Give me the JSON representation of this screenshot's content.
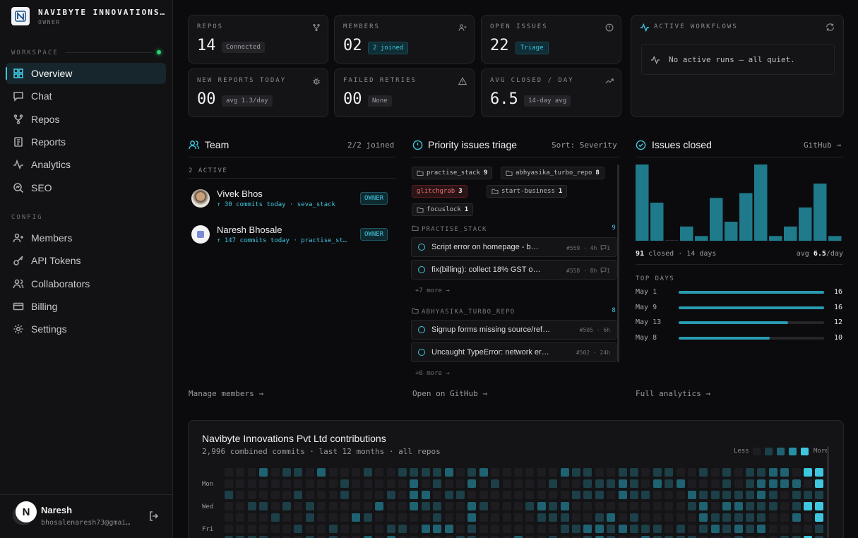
{
  "brand": {
    "name": "NAVIBYTE INNOVATIONS…",
    "role": "OWNER"
  },
  "sidebar": {
    "workspace_label": "WORKSPACE",
    "config_label": "CONFIG",
    "items": [
      {
        "label": "Overview",
        "icon": "grid-icon"
      },
      {
        "label": "Chat",
        "icon": "chat-icon"
      },
      {
        "label": "Repos",
        "icon": "repo-icon"
      },
      {
        "label": "Reports",
        "icon": "report-icon"
      },
      {
        "label": "Analytics",
        "icon": "analytics-icon"
      },
      {
        "label": "SEO",
        "icon": "seo-icon"
      }
    ],
    "config": [
      {
        "label": "Members",
        "icon": "members-icon"
      },
      {
        "label": "API Tokens",
        "icon": "key-icon"
      },
      {
        "label": "Collaborators",
        "icon": "collab-icon"
      },
      {
        "label": "Billing",
        "icon": "billing-icon"
      },
      {
        "label": "Settings",
        "icon": "gear-icon"
      }
    ]
  },
  "user": {
    "initial": "N",
    "name": "Naresh",
    "email": "bhosalenaresh73@gmai…"
  },
  "stats": [
    {
      "label": "REPOS",
      "value": "14",
      "badge": "Connected",
      "icon": "fork-icon"
    },
    {
      "label": "MEMBERS",
      "value": "02",
      "badge": "2 joined",
      "icon": "members-icon"
    },
    {
      "label": "OPEN ISSUES",
      "value": "22",
      "badge": "Triage",
      "icon": "alert-circle-icon"
    },
    {
      "label": "NEW REPORTS TODAY",
      "value": "00",
      "badge": "avg 1.3/day",
      "icon": "bug-icon"
    },
    {
      "label": "FAILED RETRIES",
      "value": "00",
      "badge": "None",
      "icon": "warning-icon"
    },
    {
      "label": "AVG CLOSED / DAY",
      "value": "6.5",
      "badge": "14-day avg",
      "icon": "trend-icon"
    }
  ],
  "workflows": {
    "title": "ACTIVE WORKFLOWS",
    "empty": "No active runs — all quiet."
  },
  "team": {
    "title": "Team",
    "joined": "2/2 joined",
    "active": "2 ACTIVE",
    "members": [
      {
        "name": "Vivek Bhos",
        "meta": "↑ 30 commits today · seva_stack",
        "role": "OWNER"
      },
      {
        "name": "Naresh Bhosale",
        "meta": "↑ 147 commits today · practise_st…",
        "role": "OWNER"
      }
    ],
    "footer": "Manage members →"
  },
  "triage": {
    "title": "Priority issues triage",
    "sort": "Sort: Severity",
    "tags": [
      {
        "name": "practise_stack",
        "count": "9"
      },
      {
        "name": "abhyasika_turbo_repo",
        "count": "8"
      },
      {
        "name": "glitchgrab",
        "count": "3"
      },
      {
        "name": "start-business",
        "count": "1"
      },
      {
        "name": "focuslock",
        "count": "1"
      }
    ],
    "groups": [
      {
        "name": "PRACTISE_STACK",
        "count": "9",
        "more": "+7 more →",
        "issues": [
          {
            "title": "Script error on homepage - b…",
            "num": "#559",
            "age": "4h",
            "comments": "1"
          },
          {
            "title": "fix(billing): collect 18% GST o…",
            "num": "#558",
            "age": "8h",
            "comments": "1"
          }
        ]
      },
      {
        "name": "ABHYASIKA_TURBO_REPO",
        "count": "8",
        "more": "+6 more →",
        "issues": [
          {
            "title": "Signup forms missing source/refe…",
            "num": "#505",
            "age": "6h",
            "comments": ""
          },
          {
            "title": "Uncaught TypeError: network err…",
            "num": "#502",
            "age": "24h",
            "comments": ""
          }
        ]
      }
    ],
    "footer": "Open on GitHub →"
  },
  "closed": {
    "title": "Issues closed",
    "link": "GitHub →",
    "total": "91",
    "total_label": "closed · 14 days",
    "avg_label": "avg",
    "avg": "6.5",
    "avg_unit": "/day",
    "top_label": "TOP DAYS",
    "top": [
      {
        "day": "May 1",
        "value": 16
      },
      {
        "day": "May 9",
        "value": 16
      },
      {
        "day": "May 13",
        "value": 12
      },
      {
        "day": "May 8",
        "value": 10
      }
    ],
    "footer": "Full analytics →"
  },
  "chart_data": {
    "type": "bar",
    "values": [
      16,
      8,
      0,
      3,
      1,
      9,
      4,
      10,
      16,
      1,
      3,
      7,
      12,
      1
    ],
    "title": "Issues closed"
  },
  "contrib": {
    "title": "Navibyte Innovations Pvt Ltd contributions",
    "subtitle": "2,996 combined commits · last 12 months · all repos",
    "less": "Less",
    "more": "More",
    "days": [
      "Mon",
      "Wed",
      "Fri"
    ],
    "colors": [
      "#1e1e22",
      "#1c3f48",
      "#1f6373",
      "#2691a6",
      "#3ec7df"
    ]
  }
}
